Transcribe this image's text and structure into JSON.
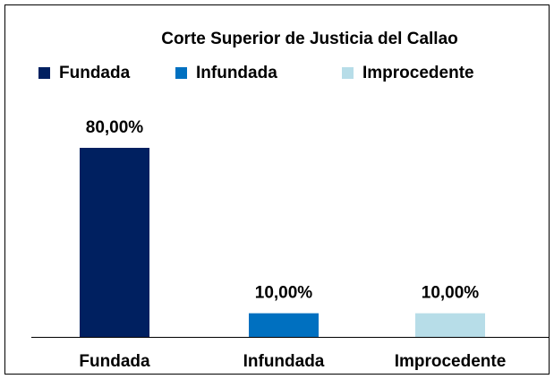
{
  "chart_data": {
    "type": "bar",
    "title": "Corte Superior de Justicia del Callao",
    "categories": [
      "Fundada",
      "Infundada",
      "Improcedente"
    ],
    "values": [
      80,
      10,
      10
    ],
    "value_labels": [
      "80,00%",
      "10,00%",
      "10,00%"
    ],
    "colors": [
      "#002060",
      "#0070c0",
      "#b7dde8"
    ],
    "legend": "top"
  }
}
